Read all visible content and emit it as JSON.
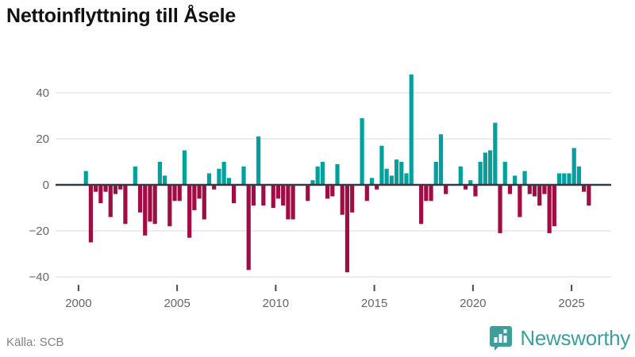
{
  "title": "Nettoinflyttning till Åsele",
  "footer": {
    "source": "Källa: SCB",
    "brand": "Newsworthy"
  },
  "colors": {
    "positive": "#00a09e",
    "negative": "#a00d45",
    "grid": "#e7e7e7",
    "zero_line": "#333a41",
    "tick_mark": "#4a4a4a",
    "axis_text": "#666666",
    "title_text": "#121212",
    "source_text": "#848484",
    "brand": "#3e9e99"
  },
  "chart_data": {
    "type": "bar",
    "title": "Nettoinflyttning till Åsele",
    "frequency": "quarterly",
    "start_period": "2000-Q1",
    "end_period": "2025-Q4",
    "xlabel": "",
    "ylabel": "",
    "x_tick_years": [
      2000,
      2005,
      2010,
      2015,
      2020,
      2025
    ],
    "y_ticks": [
      40,
      20,
      0,
      -20,
      -40
    ],
    "ylim": [
      -45,
      52
    ],
    "grid": "horizontal",
    "legend": "none",
    "values": [
      0,
      6,
      -25,
      -3,
      -8,
      -3,
      -14,
      -4,
      -2,
      -17,
      0,
      8,
      -12,
      -22,
      -16,
      -17,
      10,
      4,
      -18,
      -7,
      -7,
      15,
      -23,
      -11,
      -6,
      -15,
      5,
      -2,
      7,
      10,
      3,
      -8,
      0,
      8,
      -37,
      -9,
      21,
      -9,
      0,
      -10,
      -6,
      -9,
      -15,
      -15,
      0,
      0,
      -7,
      2,
      8,
      10,
      -6,
      -5,
      9,
      -13,
      -38,
      -12,
      0,
      29,
      -7,
      3,
      -2,
      17,
      7,
      4,
      11,
      10,
      5,
      48,
      0,
      -17,
      -7,
      -7,
      10,
      22,
      -4,
      0,
      0,
      8,
      -2,
      2,
      -5,
      10,
      14,
      15,
      27,
      -21,
      10,
      -4,
      4,
      -14,
      6,
      -4,
      -5,
      -9,
      -4,
      -21,
      -18,
      5,
      5,
      5,
      16,
      8,
      -3,
      -9
    ]
  }
}
